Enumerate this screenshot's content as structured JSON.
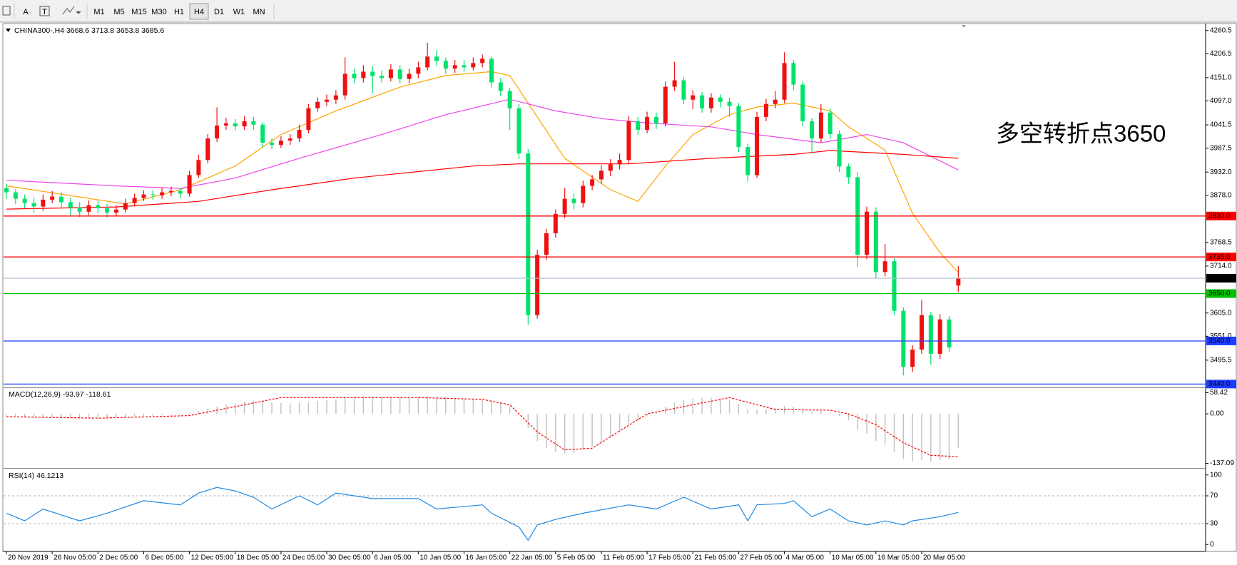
{
  "toolbar": {
    "tools": [
      "A",
      "T"
    ],
    "timeframes": [
      "M1",
      "M5",
      "M15",
      "M30",
      "H1",
      "H4",
      "D1",
      "W1",
      "MN"
    ],
    "active": "H4"
  },
  "chart_data": [
    {
      "type": "candlestick",
      "title": "CHINA300-,H4",
      "categories": [
        "20 Nov 2019",
        null,
        null,
        null,
        null,
        "26 Nov 05:00",
        null,
        null,
        null,
        null,
        "2 Dec 05:00",
        null,
        null,
        null,
        null,
        "6 Dec 05:00",
        null,
        null,
        null,
        null,
        "12 Dec 05:00",
        null,
        null,
        null,
        null,
        "18 Dec 05:00",
        null,
        null,
        null,
        null,
        "24 Dec 05:00",
        null,
        null,
        null,
        null,
        "30 Dec 05:00",
        null,
        null,
        null,
        null,
        "6 Jan 05:00",
        null,
        null,
        null,
        null,
        "10 Jan 05:00",
        null,
        null,
        null,
        null,
        "16 Jan 05:00",
        null,
        null,
        null,
        null,
        "22 Jan 05:00",
        null,
        null,
        null,
        null,
        "5 Feb 05:00",
        null,
        null,
        null,
        null,
        "11 Feb 05:00",
        null,
        null,
        null,
        null,
        "17 Feb 05:00",
        null,
        null,
        null,
        null,
        "21 Feb 05:00",
        null,
        null,
        null,
        null,
        "27 Feb 05:00",
        null,
        null,
        null,
        null,
        "4 Mar 05:00",
        null,
        null,
        null,
        null,
        "10 Mar 05:00",
        null,
        null,
        null,
        null,
        "16 Mar 05:00",
        null,
        null,
        null,
        null,
        "20 Mar 05:00",
        null,
        null,
        null,
        null
      ],
      "open": [
        3895,
        3885,
        3870,
        3860,
        3852,
        3868,
        3875,
        3862,
        3850,
        3840,
        3855,
        3848,
        3838,
        3845,
        3860,
        3872,
        3880,
        3878,
        3885,
        3888,
        3882,
        3925,
        3960,
        4010,
        4040,
        4045,
        4038,
        4050,
        4042,
        4000,
        3995,
        4005,
        4010,
        4030,
        4080,
        4095,
        4100,
        4110,
        4160,
        4150,
        4165,
        4155,
        4150,
        4170,
        4148,
        4160,
        4175,
        4200,
        4190,
        4172,
        4180,
        4175,
        4185,
        4195,
        4140,
        4120,
        4080,
        3975,
        3600,
        3740,
        3790,
        3835,
        3870,
        3860,
        3900,
        3915,
        3935,
        3950,
        3960,
        4050,
        4030,
        4060,
        4045,
        4130,
        4145,
        4100,
        4110,
        4080,
        4105,
        4095,
        4085,
        3990,
        3925,
        4060,
        4090,
        4100,
        4185,
        4135,
        4050,
        4010,
        4070,
        4020,
        3945,
        3920,
        3740,
        3840,
        3700,
        3725,
        3610,
        3480,
        3520,
        3600,
        3510,
        3590,
        3668.6
      ],
      "high": [
        3905,
        3892,
        3880,
        3872,
        3880,
        3888,
        3885,
        3872,
        3862,
        3866,
        3866,
        3858,
        3855,
        3870,
        3882,
        3890,
        3890,
        3895,
        3898,
        3895,
        3935,
        3972,
        4020,
        4082,
        4058,
        4055,
        4062,
        4060,
        4048,
        4010,
        4015,
        4020,
        4042,
        4090,
        4105,
        4112,
        4122,
        4198,
        4172,
        4180,
        4178,
        4168,
        4182,
        4180,
        4172,
        4188,
        4232,
        4215,
        4198,
        4192,
        4192,
        4198,
        4205,
        4200,
        4150,
        4128,
        4090,
        3985,
        3752,
        3800,
        3845,
        3895,
        3882,
        3912,
        3925,
        3948,
        3962,
        3975,
        4062,
        4060,
        4072,
        4070,
        4142,
        4188,
        4152,
        4122,
        4118,
        4115,
        4112,
        4105,
        4092,
        3998,
        4072,
        4102,
        4120,
        4210,
        4192,
        4142,
        4058,
        4090,
        4080,
        4028,
        3952,
        3932,
        3852,
        3850,
        3765,
        3732,
        3618,
        3530,
        3635,
        3608,
        3602,
        3598,
        3713.8
      ],
      "low": [
        3870,
        3858,
        3848,
        3838,
        3842,
        3860,
        3850,
        3830,
        3828,
        3832,
        3836,
        3826,
        3830,
        3838,
        3852,
        3865,
        3868,
        3870,
        3876,
        3872,
        3875,
        3918,
        3952,
        4002,
        4030,
        4028,
        4030,
        4030,
        3988,
        3985,
        3988,
        3995,
        4002,
        4022,
        4072,
        4085,
        4090,
        4100,
        4138,
        4140,
        4115,
        4140,
        4142,
        4138,
        4138,
        4150,
        4168,
        4178,
        4160,
        4162,
        4165,
        4168,
        4175,
        4128,
        4108,
        4030,
        3962,
        3578,
        3592,
        3728,
        3780,
        3825,
        3845,
        3850,
        3890,
        3905,
        3922,
        3938,
        3952,
        4018,
        4022,
        4032,
        4038,
        4120,
        4090,
        4078,
        4070,
        4070,
        4082,
        4060,
        3978,
        3910,
        3918,
        4050,
        4080,
        4092,
        4122,
        4038,
        3975,
        4000,
        4008,
        3932,
        3905,
        3712,
        3730,
        3685,
        3690,
        3600,
        3460,
        3468,
        3510,
        3485,
        3498,
        3515,
        3653.8
      ],
      "close": [
        3885,
        3870,
        3860,
        3852,
        3868,
        3875,
        3862,
        3850,
        3840,
        3855,
        3848,
        3838,
        3845,
        3860,
        3872,
        3880,
        3878,
        3885,
        3888,
        3882,
        3925,
        3960,
        4010,
        4040,
        4045,
        4038,
        4050,
        4042,
        4000,
        3995,
        4005,
        4010,
        4030,
        4080,
        4095,
        4100,
        4110,
        4160,
        4150,
        4165,
        4155,
        4150,
        4170,
        4148,
        4160,
        4175,
        4200,
        4190,
        4172,
        4180,
        4175,
        4185,
        4195,
        4140,
        4120,
        4080,
        3975,
        3600,
        3740,
        3790,
        3835,
        3870,
        3860,
        3900,
        3915,
        3935,
        3950,
        3960,
        4050,
        4030,
        4060,
        4045,
        4130,
        4145,
        4100,
        4110,
        4080,
        4105,
        4095,
        4085,
        3990,
        3925,
        4060,
        4090,
        4100,
        4185,
        4135,
        4050,
        4010,
        4070,
        4020,
        3945,
        3920,
        3740,
        3840,
        3700,
        3725,
        3610,
        3480,
        3520,
        3600,
        3510,
        3590,
        3525,
        3685.6
      ],
      "up_color": "#ee1111",
      "down_color": "#00e36b",
      "ylim": [
        3434,
        4275
      ],
      "yticks": [
        {
          "value": 4260.5,
          "label": "4260.5"
        },
        {
          "value": 4206.5,
          "label": "4206.5"
        },
        {
          "value": 4151,
          "label": "4151.0"
        },
        {
          "value": 4097,
          "label": "4097.0"
        },
        {
          "value": 4041.5,
          "label": "4041.5"
        },
        {
          "value": 3987.5,
          "label": "3987.5"
        },
        {
          "value": 3932,
          "label": "3932.0"
        },
        {
          "value": 3878,
          "label": "3878.0"
        },
        {
          "value": 3768.5,
          "label": "3768.5"
        },
        {
          "value": 3714,
          "label": "3714.0"
        },
        {
          "value": 3605,
          "label": "3605.0"
        },
        {
          "value": 3551,
          "label": "3551.0"
        },
        {
          "value": 3495.5,
          "label": "3495.5"
        }
      ],
      "overlays": [
        {
          "color": "#ffa500",
          "x": [
            0,
            13,
            19,
            25,
            30,
            36,
            43,
            48,
            53,
            55,
            57,
            61,
            66,
            69,
            72,
            75,
            79,
            82,
            86,
            90,
            92,
            96,
            99,
            102,
            104
          ],
          "values": [
            3900,
            3858,
            3891,
            3946,
            4019,
            4074,
            4129,
            4156,
            4165,
            4156,
            4092,
            3964,
            3891,
            3864,
            3946,
            4019,
            4065,
            4083,
            4092,
            4074,
            4037,
            3983,
            3836,
            3745,
            3699
          ]
        },
        {
          "color": "#ee44ee",
          "x": [
            0,
            12,
            19,
            25,
            32,
            41,
            48,
            55,
            60,
            65,
            70,
            77,
            82,
            89,
            94,
            98,
            104
          ],
          "values": [
            3913,
            3900,
            3894,
            3918,
            3964,
            4019,
            4065,
            4101,
            4074,
            4056,
            4046,
            4037,
            4019,
            4000,
            4019,
            4000,
            3937
          ]
        },
        {
          "color": "#ff0000",
          "x": [
            0,
            12,
            21,
            29,
            38,
            51,
            56,
            68,
            77,
            86,
            90,
            98,
            104
          ],
          "values": [
            3846,
            3851,
            3864,
            3891,
            3918,
            3946,
            3951,
            3951,
            3964,
            3973,
            3982,
            3973,
            3964
          ]
        }
      ],
      "levels": [
        {
          "value": 3830,
          "label": "3830.0",
          "color": "#ff0000",
          "box": "#ff0000"
        },
        {
          "value": 3735,
          "label": "3735.0",
          "color": "#ff0000",
          "box": "#ff0000"
        },
        {
          "value": 3685.6,
          "label": "3685.6",
          "color": "#b4c0d0",
          "box": "#000000"
        },
        {
          "value": 3650,
          "label": "3650.0",
          "color": "#00c000",
          "box": "#00c000"
        },
        {
          "value": 3540,
          "label": "3540.0",
          "color": "#1e3cff",
          "box": "#1e3cff"
        },
        {
          "value": 3440,
          "label": "3440.0",
          "color": "#1e3cff",
          "box": "#1e3cff"
        }
      ],
      "annotation": {
        "text": "多空转折点3650",
        "color": "#ff1010"
      }
    },
    {
      "type": "macd",
      "title": "MACD(12,26,9)",
      "series": [
        {
          "color": "#c0c0c0",
          "values": [
            -5,
            -6,
            -8,
            -9,
            -10,
            -10,
            -11,
            -12,
            -12,
            -11,
            -10,
            -10,
            -9,
            -8,
            -7,
            -6,
            -5,
            -4,
            -3,
            -2,
            3,
            8,
            14,
            20,
            26,
            30,
            34,
            36,
            34,
            32,
            30,
            29,
            30,
            33,
            36,
            38,
            40,
            44,
            46,
            48,
            48,
            47,
            47,
            46,
            45,
            46,
            48,
            48,
            46,
            44,
            42,
            41,
            40,
            36,
            30,
            20,
            2,
            -40,
            -75,
            -95,
            -105,
            -110,
            -108,
            -100,
            -90,
            -78,
            -65,
            -50,
            -30,
            -18,
            -5,
            4,
            20,
            32,
            38,
            42,
            44,
            44,
            42,
            38,
            28,
            14,
            12,
            14,
            16,
            22,
            20,
            12,
            6,
            8,
            4,
            -6,
            -18,
            -45,
            -55,
            -75,
            -85,
            -105,
            -125,
            -132,
            -128,
            -132,
            -128,
            -126,
            -93.97
          ]
        },
        {
          "color": "#ff0000",
          "x": [
            0,
            10,
            20,
            30,
            45,
            52,
            55,
            58,
            61,
            64,
            70,
            79,
            84,
            90,
            92,
            95,
            98,
            101,
            104
          ],
          "values": [
            -8,
            -12,
            -5,
            45,
            45,
            40,
            25,
            -50,
            -100,
            -95,
            0,
            45,
            12,
            10,
            0,
            -30,
            -80,
            -115,
            -118.61
          ]
        }
      ],
      "ylim": [
        -148,
        69.3
      ],
      "yticks": [
        58.42,
        {
          "value": 0,
          "label": "0.00"
        },
        -137.09
      ]
    },
    {
      "type": "line",
      "title": "RSI(14)",
      "series": [
        {
          "color": "#1e88e5",
          "x": [
            0,
            2,
            4,
            8,
            11,
            15,
            19,
            21,
            23,
            25,
            27,
            29,
            32,
            34,
            36,
            40,
            45,
            47,
            52,
            53,
            56,
            57,
            58,
            60,
            63,
            68,
            71,
            74,
            77,
            80,
            81,
            82,
            85,
            86,
            88,
            90,
            92,
            94,
            96,
            98,
            99,
            102,
            104
          ],
          "values": [
            45,
            34,
            51,
            34,
            45,
            63,
            57,
            74,
            82,
            77,
            68,
            51,
            70,
            57,
            74,
            66,
            66,
            51,
            57,
            45,
            25,
            6,
            28,
            36,
            45,
            57,
            51,
            68,
            51,
            57,
            34,
            57,
            59,
            63,
            40,
            51,
            34,
            28,
            34,
            28,
            34,
            40,
            46.1213
          ]
        }
      ],
      "ylim": [
        -8,
        107
      ],
      "yticks": [
        100,
        70,
        30,
        0
      ],
      "levels": [
        70,
        30
      ]
    }
  ]
}
